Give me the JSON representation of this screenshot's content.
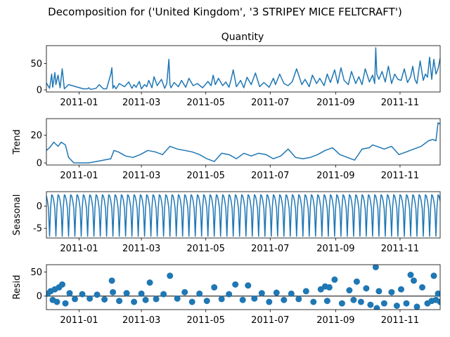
{
  "figure": {
    "suptitle": "Decomposition for ('United Kingdom', '3 STRIPEY MICE FELTCRAFT')"
  },
  "colors": {
    "series": "#1f77b4",
    "zero_line": "#000000",
    "axes": "#000000"
  },
  "chart_data": [
    {
      "type": "line",
      "title": "Quantity",
      "ylabel": "",
      "x_range": [
        "2010-12-01",
        "2011-12-09"
      ],
      "ylim": [
        -4,
        84
      ],
      "yticks": [
        0,
        50
      ],
      "xticks": [
        "2011-01",
        "2011-03",
        "2011-05",
        "2011-07",
        "2011-09",
        "2011-11"
      ],
      "series": [
        {
          "x": [
            "2010-12-01",
            "2010-12-04",
            "2010-12-06",
            "2010-12-07",
            "2010-12-09",
            "2010-12-10",
            "2010-12-12",
            "2010-12-14",
            "2010-12-16",
            "2010-12-18",
            "2010-12-22",
            "2011-01-05",
            "2011-01-09",
            "2011-01-10",
            "2011-01-12",
            "2011-01-17",
            "2011-01-20",
            "2011-01-24",
            "2011-01-27",
            "2011-01-31",
            "2011-02-01",
            "2011-02-02",
            "2011-02-03",
            "2011-02-05",
            "2011-02-08",
            "2011-02-13",
            "2011-02-17",
            "2011-02-20",
            "2011-02-22",
            "2011-02-24",
            "2011-02-27",
            "2011-03-01",
            "2011-03-04",
            "2011-03-06",
            "2011-03-08",
            "2011-03-11",
            "2011-03-13",
            "2011-03-16",
            "2011-03-20",
            "2011-03-23",
            "2011-03-25",
            "2011-03-27",
            "2011-03-28",
            "2011-03-29",
            "2011-04-01",
            "2011-04-05",
            "2011-04-08",
            "2011-04-12",
            "2011-04-15",
            "2011-04-19",
            "2011-04-23",
            "2011-04-28",
            "2011-05-03",
            "2011-05-06",
            "2011-05-08",
            "2011-05-10",
            "2011-05-13",
            "2011-05-17",
            "2011-05-20",
            "2011-05-23",
            "2011-05-25",
            "2011-05-27",
            "2011-05-30",
            "2011-06-03",
            "2011-06-06",
            "2011-06-09",
            "2011-06-13",
            "2011-06-17",
            "2011-06-21",
            "2011-06-25",
            "2011-06-30",
            "2011-07-04",
            "2011-07-06",
            "2011-07-10",
            "2011-07-14",
            "2011-07-18",
            "2011-07-22",
            "2011-07-26",
            "2011-07-31",
            "2011-08-03",
            "2011-08-07",
            "2011-08-10",
            "2011-08-14",
            "2011-08-17",
            "2011-08-21",
            "2011-08-24",
            "2011-08-27",
            "2011-08-31",
            "2011-09-03",
            "2011-09-06",
            "2011-09-09",
            "2011-09-13",
            "2011-09-16",
            "2011-09-20",
            "2011-09-23",
            "2011-09-26",
            "2011-09-29",
            "2011-10-03",
            "2011-10-06",
            "2011-10-08",
            "2011-10-09",
            "2011-10-10",
            "2011-10-12",
            "2011-10-15",
            "2011-10-18",
            "2011-10-21",
            "2011-10-24",
            "2011-10-27",
            "2011-10-30",
            "2011-11-02",
            "2011-11-05",
            "2011-11-08",
            "2011-11-11",
            "2011-11-13",
            "2011-11-15",
            "2011-11-17",
            "2011-11-20",
            "2011-11-23",
            "2011-11-25",
            "2011-11-27",
            "2011-11-29",
            "2011-12-01",
            "2011-12-03",
            "2011-12-05",
            "2011-12-07",
            "2011-12-09"
          ],
          "values": [
            13,
            3,
            30,
            5,
            33,
            10,
            28,
            4,
            40,
            2,
            10,
            2,
            2,
            4,
            1,
            3,
            10,
            2,
            2,
            30,
            42,
            3,
            8,
            2,
            12,
            6,
            15,
            3,
            10,
            5,
            16,
            2,
            10,
            6,
            18,
            4,
            25,
            8,
            20,
            3,
            12,
            58,
            10,
            4,
            14,
            6,
            18,
            5,
            22,
            8,
            12,
            4,
            16,
            8,
            28,
            10,
            22,
            8,
            15,
            5,
            20,
            38,
            6,
            18,
            4,
            24,
            10,
            32,
            6,
            14,
            5,
            22,
            10,
            30,
            12,
            8,
            16,
            40,
            10,
            20,
            6,
            28,
            12,
            22,
            8,
            30,
            14,
            38,
            12,
            42,
            18,
            10,
            35,
            12,
            25,
            10,
            40,
            15,
            28,
            12,
            80,
            30,
            20,
            35,
            15,
            45,
            12,
            30,
            20,
            18,
            40,
            14,
            25,
            45,
            20,
            12,
            55,
            18,
            30,
            24,
            62,
            20,
            58,
            30,
            40,
            60
          ]
        }
      ]
    },
    {
      "type": "line",
      "title": "",
      "ylabel": "Trend",
      "x_range": [
        "2010-12-01",
        "2011-12-09"
      ],
      "ylim": [
        -1.5,
        32
      ],
      "yticks": [
        0,
        20
      ],
      "xticks": [
        "2011-01",
        "2011-03",
        "2011-05",
        "2011-07",
        "2011-09",
        "2011-11"
      ],
      "series": [
        {
          "x": [
            "2010-12-01",
            "2010-12-04",
            "2010-12-08",
            "2010-12-12",
            "2010-12-15",
            "2010-12-19",
            "2010-12-22",
            "2010-12-27",
            "2011-01-03",
            "2011-01-10",
            "2011-01-17",
            "2011-01-24",
            "2011-01-31",
            "2011-02-03",
            "2011-02-07",
            "2011-02-14",
            "2011-02-21",
            "2011-02-28",
            "2011-03-07",
            "2011-03-14",
            "2011-03-21",
            "2011-03-28",
            "2011-04-04",
            "2011-04-11",
            "2011-04-18",
            "2011-04-25",
            "2011-05-02",
            "2011-05-09",
            "2011-05-16",
            "2011-05-23",
            "2011-05-30",
            "2011-06-06",
            "2011-06-13",
            "2011-06-20",
            "2011-06-27",
            "2011-07-04",
            "2011-07-11",
            "2011-07-18",
            "2011-07-25",
            "2011-08-01",
            "2011-08-08",
            "2011-08-15",
            "2011-08-22",
            "2011-08-29",
            "2011-09-05",
            "2011-09-12",
            "2011-09-19",
            "2011-09-26",
            "2011-10-03",
            "2011-10-06",
            "2011-10-10",
            "2011-10-17",
            "2011-10-24",
            "2011-10-31",
            "2011-11-07",
            "2011-11-14",
            "2011-11-21",
            "2011-11-28",
            "2011-12-02",
            "2011-12-05",
            "2011-12-07",
            "2011-12-09"
          ],
          "values": [
            9,
            11,
            15,
            12,
            15,
            13,
            4,
            0,
            0,
            0,
            1,
            2,
            3,
            9,
            8,
            5,
            4,
            6,
            9,
            8,
            6,
            12,
            10,
            9,
            8,
            6,
            3,
            1,
            7,
            6,
            3,
            7,
            5,
            7,
            6,
            3,
            5,
            10,
            4,
            3,
            4,
            6,
            9,
            11,
            6,
            4,
            2,
            10,
            11,
            13,
            12,
            10,
            12,
            6,
            8,
            10,
            12,
            16,
            17,
            16,
            29,
            28
          ]
        }
      ]
    },
    {
      "type": "line",
      "title": "",
      "ylabel": "Seasonal",
      "x_range": [
        "2010-12-01",
        "2011-12-09"
      ],
      "ylim": [
        -7.2,
        3.3
      ],
      "yticks": [
        -5,
        0
      ],
      "xticks": [
        "2011-01",
        "2011-03",
        "2011-05",
        "2011-07",
        "2011-09",
        "2011-11"
      ],
      "period_days": 6,
      "period_pattern": [
        2.3,
        1.2,
        -0.6,
        -6.8,
        -0.2,
        2.6
      ],
      "series": []
    },
    {
      "type": "scatter",
      "title": "",
      "ylabel": "Resid",
      "x_range": [
        "2010-12-01",
        "2011-12-09"
      ],
      "ylim": [
        -28,
        65
      ],
      "yticks": [
        0,
        50
      ],
      "xticks": [
        "2011-01",
        "2011-03",
        "2011-05",
        "2011-07",
        "2011-09",
        "2011-11"
      ],
      "zero_line": true,
      "series": [
        {
          "x": [
            "2010-12-02",
            "2010-12-05",
            "2010-12-07",
            "2010-12-09",
            "2010-12-11",
            "2010-12-13",
            "2010-12-16",
            "2010-12-19",
            "2010-12-23",
            "2010-12-28",
            "2011-01-04",
            "2011-01-11",
            "2011-01-18",
            "2011-01-25",
            "2011-02-01",
            "2011-02-02",
            "2011-02-08",
            "2011-02-15",
            "2011-02-22",
            "2011-03-01",
            "2011-03-05",
            "2011-03-09",
            "2011-03-15",
            "2011-03-22",
            "2011-03-28",
            "2011-04-04",
            "2011-04-11",
            "2011-04-18",
            "2011-04-25",
            "2011-05-02",
            "2011-05-09",
            "2011-05-16",
            "2011-05-23",
            "2011-05-29",
            "2011-06-05",
            "2011-06-10",
            "2011-06-16",
            "2011-06-23",
            "2011-06-30",
            "2011-07-07",
            "2011-07-14",
            "2011-07-21",
            "2011-07-28",
            "2011-08-04",
            "2011-08-11",
            "2011-08-18",
            "2011-08-22",
            "2011-08-24",
            "2011-08-26",
            "2011-08-31",
            "2011-09-07",
            "2011-09-14",
            "2011-09-18",
            "2011-09-21",
            "2011-09-25",
            "2011-09-30",
            "2011-10-04",
            "2011-10-09",
            "2011-10-10",
            "2011-10-12",
            "2011-10-17",
            "2011-10-24",
            "2011-10-29",
            "2011-11-02",
            "2011-11-07",
            "2011-11-11",
            "2011-11-14",
            "2011-11-17",
            "2011-11-22",
            "2011-11-27",
            "2011-12-01",
            "2011-12-03",
            "2011-12-05",
            "2011-12-07",
            "2011-12-09"
          ],
          "values": [
            5,
            10,
            -8,
            14,
            -12,
            18,
            24,
            -15,
            6,
            -6,
            4,
            -5,
            3,
            -7,
            32,
            8,
            -10,
            6,
            -12,
            5,
            -8,
            28,
            -6,
            4,
            42,
            -5,
            8,
            -12,
            5,
            -10,
            18,
            -6,
            4,
            24,
            -8,
            22,
            -5,
            6,
            -12,
            7,
            -8,
            5,
            -6,
            10,
            -12,
            14,
            20,
            -10,
            18,
            34,
            -15,
            12,
            -8,
            30,
            -12,
            16,
            -18,
            60,
            -25,
            10,
            -15,
            8,
            -20,
            14,
            -15,
            44,
            32,
            -22,
            18,
            -15,
            -10,
            42,
            -8,
            5,
            -12
          ]
        }
      ]
    }
  ]
}
